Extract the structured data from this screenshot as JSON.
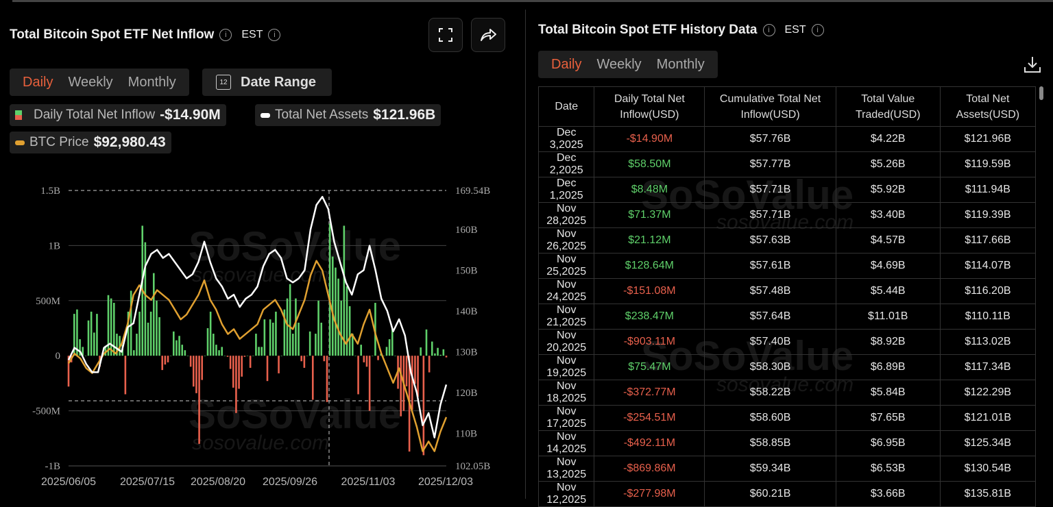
{
  "left": {
    "title": "Total Bitcoin Spot ETF Net Inflow",
    "timezone": "EST",
    "tabs": [
      {
        "label": "Daily",
        "active": true
      },
      {
        "label": "Weekly"
      },
      {
        "label": "Monthly"
      }
    ],
    "date_range_label": "Date Range",
    "calendar_day": "12",
    "legend": {
      "inflow_label": "Daily Total Net Inflow",
      "inflow_value": "-$14.90M",
      "assets_label": "Total Net Assets",
      "assets_value": "$121.96B",
      "price_label": "BTC Price",
      "price_value": "$92,980.43"
    },
    "icons": [
      "fullscreen-icon",
      "share-icon"
    ]
  },
  "watermark": {
    "brand": "SoSoValue",
    "url": "sosovalue.com"
  },
  "colors": {
    "accent": "#e8603c",
    "positive": "#5fd06a",
    "negative": "#e8604c",
    "assets_line": "#ffffff",
    "price_line": "#e0a030"
  },
  "chart_data": {
    "type": "bar+line",
    "x_tick_labels": [
      "2025/06/05",
      "2025/07/15",
      "2025/08/20",
      "2025/09/26",
      "2025/11/03",
      "2025/12/03"
    ],
    "left_axis": {
      "ticks": [
        "1.5B",
        "1B",
        "500M",
        "0",
        "-500M",
        "-1B"
      ],
      "range_musd": [
        -1000,
        1500
      ]
    },
    "right_axis": {
      "ticks": [
        "169.54B",
        "160B",
        "150B",
        "140B",
        "130B",
        "120B",
        "110B",
        "102.05B"
      ],
      "range_busd": [
        102.05,
        169.54
      ]
    },
    "series": [
      {
        "name": "Daily Total Net Inflow",
        "type": "bar",
        "unit": "M USD",
        "values": [
          -280,
          -60,
          380,
          420,
          150,
          80,
          0,
          320,
          400,
          210,
          380,
          -100,
          0,
          90,
          550,
          520,
          480,
          200,
          180,
          100,
          -350,
          400,
          590,
          50,
          200,
          400,
          1180,
          1030,
          300,
          400,
          750,
          500,
          350,
          -130,
          -80,
          -60,
          0,
          220,
          140,
          180,
          100,
          50,
          0,
          -100,
          -280,
          -340,
          -800,
          -220,
          0,
          250,
          400,
          200,
          100,
          50,
          80,
          0,
          -10,
          -120,
          -290,
          -520,
          -300,
          -190,
          -10,
          0,
          -110,
          0,
          200,
          80,
          80,
          330,
          -230,
          330,
          300,
          400,
          -160,
          0,
          420,
          520,
          650,
          200,
          520,
          300,
          -50,
          -110,
          0,
          220,
          -400,
          200,
          500,
          300,
          -50,
          -420,
          1200,
          900,
          800,
          700,
          500,
          1180,
          630,
          450,
          200,
          0,
          -350,
          100,
          -60,
          -100,
          -500,
          0,
          480,
          -40,
          20,
          0,
          80,
          150,
          250,
          0,
          -300,
          -550,
          -500,
          -277.98,
          -869.86,
          -492.11,
          -254.51,
          -372.77,
          75.47,
          -903.11,
          238.47,
          -151.08,
          128.64,
          21.12,
          71.37,
          8.48,
          58.5,
          -14.9
        ]
      },
      {
        "name": "Total Net Assets",
        "type": "line",
        "unit": "B USD",
        "values": [
          128,
          131,
          130,
          127,
          125,
          125,
          131,
          132,
          131,
          130,
          136,
          137,
          144,
          151,
          154,
          155,
          153,
          154,
          152,
          150,
          148,
          149,
          152,
          157,
          152,
          148,
          146,
          143,
          144,
          141,
          143,
          144,
          146,
          151,
          154,
          155,
          153,
          148,
          147,
          148,
          150,
          160,
          166,
          168,
          165,
          157,
          152,
          147,
          144,
          149,
          150,
          156,
          150,
          143,
          140,
          135,
          138,
          134,
          125,
          120,
          112,
          115,
          109,
          117,
          121.96
        ]
      },
      {
        "name": "BTC Price",
        "type": "line",
        "unit": "USD",
        "values": [
          104000,
          106000,
          105000,
          103000,
          102000,
          104000,
          106000,
          107000,
          106000,
          108000,
          112000,
          118000,
          120000,
          118000,
          117000,
          119000,
          118000,
          117000,
          115000,
          113000,
          114000,
          116000,
          118000,
          121000,
          117000,
          115000,
          112000,
          110000,
          111000,
          109000,
          110000,
          111000,
          112000,
          115000,
          116000,
          117000,
          115000,
          112000,
          111000,
          114000,
          117000,
          122000,
          125000,
          123000,
          118000,
          113000,
          110000,
          108000,
          110000,
          108000,
          112000,
          115000,
          110000,
          106000,
          103000,
          100000,
          103000,
          99000,
          95000,
          91000,
          86000,
          88000,
          86000,
          90000,
          92980.43
        ]
      }
    ]
  },
  "right": {
    "title": "Total Bitcoin Spot ETF History Data",
    "timezone": "EST",
    "tabs": [
      {
        "label": "Daily",
        "active": true
      },
      {
        "label": "Weekly"
      },
      {
        "label": "Monthly"
      }
    ],
    "columns": [
      "Date",
      "Daily Total Net Inflow(USD)",
      "Cumulative Total Net Inflow(USD)",
      "Total Value Traded(USD)",
      "Total Net Assets(USD)"
    ],
    "rows": [
      [
        "Dec 3,2025",
        "-$14.90M",
        "$57.76B",
        "$4.22B",
        "$121.96B"
      ],
      [
        "Dec 2,2025",
        "$58.50M",
        "$57.77B",
        "$5.26B",
        "$119.59B"
      ],
      [
        "Dec 1,2025",
        "$8.48M",
        "$57.71B",
        "$5.92B",
        "$111.94B"
      ],
      [
        "Nov 28,2025",
        "$71.37M",
        "$57.71B",
        "$3.40B",
        "$119.39B"
      ],
      [
        "Nov 26,2025",
        "$21.12M",
        "$57.63B",
        "$4.57B",
        "$117.66B"
      ],
      [
        "Nov 25,2025",
        "$128.64M",
        "$57.61B",
        "$4.69B",
        "$114.07B"
      ],
      [
        "Nov 24,2025",
        "-$151.08M",
        "$57.48B",
        "$5.44B",
        "$116.20B"
      ],
      [
        "Nov 21,2025",
        "$238.47M",
        "$57.64B",
        "$11.01B",
        "$110.11B"
      ],
      [
        "Nov 20,2025",
        "-$903.11M",
        "$57.40B",
        "$8.92B",
        "$113.02B"
      ],
      [
        "Nov 19,2025",
        "$75.47M",
        "$58.30B",
        "$6.89B",
        "$117.34B"
      ],
      [
        "Nov 18,2025",
        "-$372.77M",
        "$58.22B",
        "$5.84B",
        "$122.29B"
      ],
      [
        "Nov 17,2025",
        "-$254.51M",
        "$58.60B",
        "$7.65B",
        "$121.01B"
      ],
      [
        "Nov 14,2025",
        "-$492.11M",
        "$58.85B",
        "$6.95B",
        "$125.34B"
      ],
      [
        "Nov 13,2025",
        "-$869.86M",
        "$59.34B",
        "$6.53B",
        "$130.54B"
      ],
      [
        "Nov 12,2025",
        "-$277.98M",
        "$60.21B",
        "$3.66B",
        "$135.81B"
      ]
    ]
  }
}
